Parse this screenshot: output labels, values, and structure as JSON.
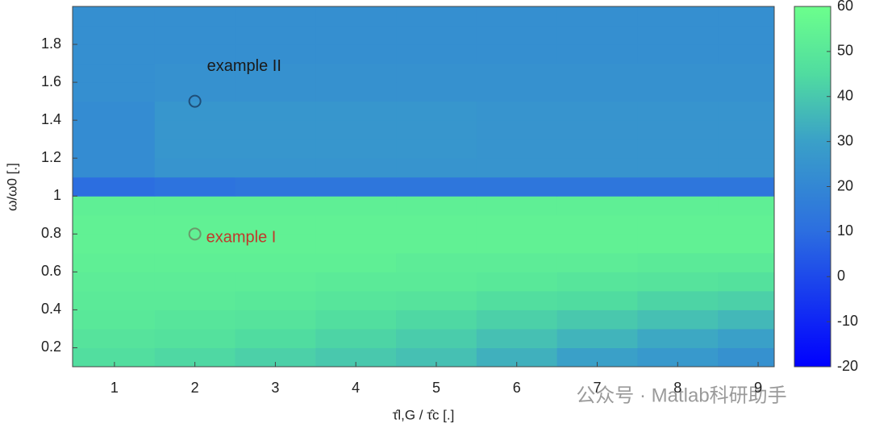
{
  "chart_data": {
    "type": "heatmap",
    "x_label": "τ̂l,G / τ̂c [.]",
    "y_label": "ω/ω0 [.]",
    "x": [
      1,
      2,
      3,
      4,
      5,
      6,
      7,
      8,
      9
    ],
    "y": [
      0.15,
      0.25,
      0.35,
      0.45,
      0.55,
      0.65,
      0.75,
      0.85,
      0.95,
      1.05,
      1.15,
      1.25,
      1.35,
      1.45,
      1.55,
      1.65,
      1.75,
      1.85,
      1.95
    ],
    "z": [
      [
        46,
        44,
        42,
        40,
        38,
        34,
        30,
        27,
        24
      ],
      [
        48,
        47,
        45,
        43,
        41,
        38,
        35,
        32,
        30
      ],
      [
        50,
        49,
        48,
        46,
        44,
        42,
        40,
        38,
        36
      ],
      [
        51,
        51,
        50,
        49,
        48,
        46,
        45,
        43,
        42
      ],
      [
        52,
        52,
        52,
        51,
        51,
        50,
        49,
        48,
        47
      ],
      [
        53,
        53,
        53,
        53,
        52,
        52,
        52,
        51,
        51
      ],
      [
        54,
        54,
        54,
        54,
        54,
        54,
        54,
        54,
        54
      ],
      [
        54,
        54,
        54,
        54,
        54,
        54,
        54,
        54,
        54
      ],
      [
        53,
        53,
        53,
        53,
        53,
        53,
        53,
        53,
        53
      ],
      [
        10,
        12,
        13,
        13,
        13,
        13,
        13,
        13,
        13
      ],
      [
        22,
        25,
        25,
        25,
        25,
        25,
        25,
        25,
        25
      ],
      [
        22,
        26,
        26,
        26,
        26,
        25,
        25,
        25,
        25
      ],
      [
        22,
        26,
        26,
        26,
        26,
        25,
        25,
        25,
        25
      ],
      [
        22,
        26,
        26,
        26,
        26,
        25,
        25,
        25,
        25
      ],
      [
        23,
        24,
        24,
        24,
        24,
        24,
        24,
        24,
        24
      ],
      [
        23,
        24,
        24,
        24,
        24,
        24,
        24,
        24,
        24
      ],
      [
        23,
        23,
        23,
        23,
        23,
        23,
        23,
        23,
        23
      ],
      [
        23,
        23,
        23,
        23,
        23,
        23,
        23,
        23,
        23
      ],
      [
        23,
        23,
        23,
        23,
        23,
        23,
        23,
        23,
        23
      ]
    ],
    "xlim": [
      0.48,
      9.2
    ],
    "xticks": [
      1,
      2,
      3,
      4,
      5,
      6,
      7,
      8,
      9
    ],
    "ylim": [
      0.1,
      2.0
    ],
    "yticks": [
      0.2,
      0.4,
      0.6,
      0.8,
      1,
      1.2,
      1.4,
      1.6,
      1.8
    ],
    "clim": [
      -20,
      60
    ],
    "cticks": [
      -20,
      -10,
      0,
      10,
      20,
      30,
      40,
      50,
      60
    ],
    "colormap": [
      {
        "value": -20,
        "color": "#0000ff"
      },
      {
        "value": 10,
        "color": "#2c6ee0"
      },
      {
        "value": 30,
        "color": "#3aa0c8"
      },
      {
        "value": 45,
        "color": "#50dca0"
      },
      {
        "value": 60,
        "color": "#6cff8c"
      }
    ],
    "annotations": [
      {
        "text": "example II",
        "x": 2,
        "y": 1.5,
        "color": "#1a1a1a",
        "marker_color": "#1f4e78"
      },
      {
        "text": "example I",
        "x": 2,
        "y": 0.8,
        "color": "#c0392b",
        "marker_color": "#6a9a6a"
      }
    ],
    "watermark": "公众号 · Matlab科研助手"
  }
}
